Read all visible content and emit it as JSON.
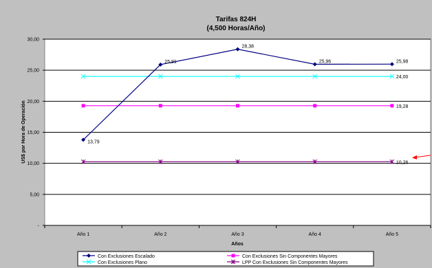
{
  "chart_data": {
    "type": "line",
    "title": "Tarifas 824H",
    "subtitle": "(4,500 Horas/Año)",
    "xlabel": "Años",
    "ylabel": "US$ por Hora de Operación",
    "categories": [
      "Año 1",
      "Año 2",
      "Año 3",
      "Año 4",
      "Año 5"
    ],
    "y_ticks": [
      "-",
      "5,00",
      "10,00",
      "15,00",
      "20,00",
      "25,00",
      "30,00"
    ],
    "ylim": [
      0,
      30
    ],
    "grid": "horizontal",
    "legend_position": "bottom",
    "series": [
      {
        "name": "Con Exclusiones Escalado",
        "values": [
          13.79,
          25.91,
          28.38,
          25.96,
          25.98
        ],
        "labels": [
          "13,79",
          "25,91",
          "28,38",
          "25,96",
          "25,98"
        ],
        "color": "#000080",
        "marker": "diamond"
      },
      {
        "name": "Con Exclusiones Sin Componentes Mayores",
        "values": [
          19.28,
          19.28,
          19.28,
          19.28,
          19.28
        ],
        "labels": [
          "",
          "",
          "",
          "",
          "19,28"
        ],
        "color": "#ff00ff",
        "marker": "square"
      },
      {
        "name": "Con Exclusiones Plano",
        "values": [
          24.0,
          24.0,
          24.0,
          24.0,
          24.0
        ],
        "labels": [
          "",
          "",
          "",
          "",
          "24,00"
        ],
        "color": "#00ffff",
        "marker": "x"
      },
      {
        "name": "LPP Con Exclusiones Sin Componentes Mayores",
        "values": [
          10.26,
          10.26,
          10.26,
          10.26,
          10.26
        ],
        "labels": [
          "",
          "",
          "",
          "",
          "10,26"
        ],
        "color": "#800080",
        "marker": "asterisk"
      }
    ],
    "annotation_arrow_color": "#ff0000"
  }
}
